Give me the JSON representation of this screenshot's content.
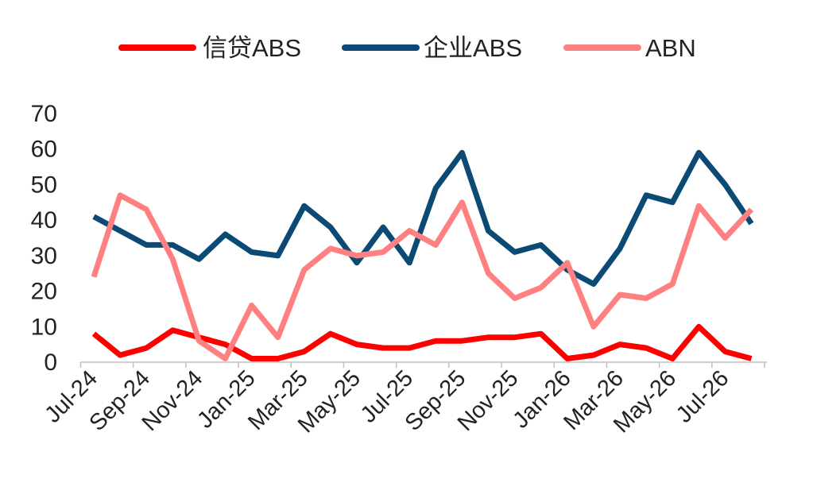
{
  "chart_data": {
    "type": "line",
    "title": "",
    "xlabel": "",
    "ylabel": "",
    "ylim": [
      0,
      70
    ],
    "yticks": [
      0,
      10,
      20,
      30,
      40,
      50,
      60,
      70
    ],
    "grid": false,
    "legend_position": "top-center",
    "x": [
      "Jul-24",
      "Aug-24",
      "Sep-24",
      "Oct-24",
      "Nov-24",
      "Dec-24",
      "Jan-25",
      "Feb-25",
      "Mar-25",
      "Apr-25",
      "May-25",
      "Jun-25",
      "Jul-25",
      "Aug-25",
      "Sep-25",
      "Oct-25",
      "Nov-25",
      "Dec-25",
      "Jan-26",
      "Feb-26",
      "Mar-26",
      "Apr-26",
      "May-26",
      "Jun-26",
      "Jul-26",
      "Aug-26"
    ],
    "x_tick_labels": [
      "Jul-24",
      "Sep-24",
      "Nov-24",
      "Jan-25",
      "Mar-25",
      "May-25",
      "Jul-25",
      "Sep-25",
      "Nov-25",
      "Jan-26",
      "Mar-26",
      "May-26",
      "Jul-26"
    ],
    "series": [
      {
        "name": "信贷ABS",
        "color": "#ff0000",
        "values": [
          8,
          2,
          4,
          9,
          7,
          5,
          1,
          1,
          3,
          8,
          5,
          4,
          4,
          6,
          6,
          7,
          7,
          8,
          1,
          2,
          5,
          4,
          1,
          10,
          3,
          1
        ]
      },
      {
        "name": "企业ABS",
        "color": "#0b4a74",
        "values": [
          41,
          37,
          33,
          33,
          29,
          36,
          31,
          30,
          44,
          38,
          28,
          38,
          28,
          49,
          59,
          37,
          31,
          33,
          26,
          22,
          32,
          47,
          45,
          59,
          50,
          39
        ]
      },
      {
        "name": "ABN",
        "color": "#ff8080",
        "values": [
          24,
          47,
          43,
          29,
          6,
          1,
          16,
          7,
          26,
          32,
          30,
          31,
          37,
          33,
          45,
          25,
          18,
          21,
          28,
          10,
          19,
          18,
          22,
          44,
          35,
          43
        ]
      }
    ]
  }
}
